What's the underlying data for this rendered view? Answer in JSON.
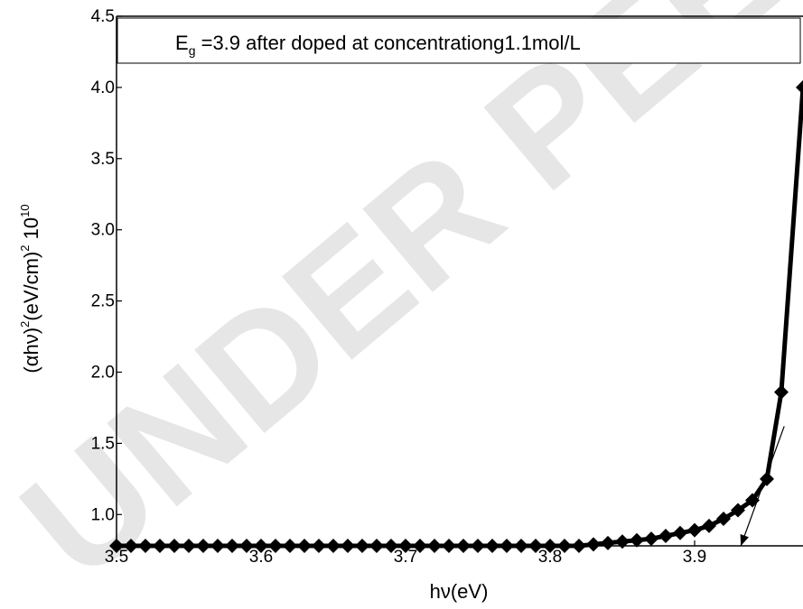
{
  "watermark": "UNDER PEER REVIEW",
  "chart_data": {
    "type": "scatter",
    "title": "",
    "legend_text_prefix": "E",
    "legend_text_sub": "g",
    "legend_text_rest": " =3.9 after doped at concentrationg1.1mol/L",
    "legend_position": "top",
    "xlabel": "hν(eV)",
    "ylabel_main": "(αhν)",
    "ylabel_sup1": "2",
    "ylabel_mid": "(eV/cm)",
    "ylabel_sup2": "2",
    "ylabel_tail": " 10",
    "ylabel_sup3": "10",
    "xlim": [
      3.5,
      3.975
    ],
    "ylim": [
      0.78,
      4.5
    ],
    "xticks": [
      3.5,
      3.6,
      3.7,
      3.8,
      3.9
    ],
    "xtick_labels": [
      "3.5",
      "3.6",
      "3.7",
      "3.8",
      "3.9"
    ],
    "yticks": [
      1.0,
      1.5,
      2.0,
      2.5,
      3.0,
      3.5,
      4.0,
      4.5
    ],
    "ytick_labels": [
      "1.0",
      "1.5",
      "2.0",
      "2.5",
      "3.0",
      "3.5",
      "4.0",
      "4.5"
    ],
    "marker": "diamond",
    "color": "#000000",
    "grid": false,
    "series": [
      {
        "x": [
          3.5,
          3.51,
          3.52,
          3.53,
          3.54,
          3.55,
          3.56,
          3.57,
          3.58,
          3.59,
          3.6,
          3.61,
          3.62,
          3.63,
          3.64,
          3.65,
          3.66,
          3.67,
          3.68,
          3.69,
          3.7,
          3.71,
          3.72,
          3.73,
          3.74,
          3.75,
          3.76,
          3.77,
          3.78,
          3.79,
          3.8,
          3.81,
          3.82,
          3.83,
          3.84,
          3.85,
          3.86,
          3.87,
          3.88,
          3.89,
          3.9,
          3.91,
          3.92,
          3.93,
          3.94,
          3.95,
          3.96,
          3.975
        ],
        "y": [
          0.78,
          0.78,
          0.78,
          0.78,
          0.78,
          0.78,
          0.78,
          0.78,
          0.78,
          0.78,
          0.78,
          0.78,
          0.78,
          0.78,
          0.78,
          0.78,
          0.78,
          0.78,
          0.78,
          0.78,
          0.78,
          0.78,
          0.78,
          0.78,
          0.78,
          0.78,
          0.78,
          0.78,
          0.78,
          0.78,
          0.78,
          0.78,
          0.78,
          0.79,
          0.8,
          0.81,
          0.82,
          0.83,
          0.85,
          0.87,
          0.89,
          0.92,
          0.97,
          1.03,
          1.1,
          1.25,
          1.86,
          4.0
        ]
      }
    ],
    "tangent_line": {
      "x": [
        3.932,
        3.962
      ],
      "y": [
        0.78,
        1.62
      ]
    },
    "arrow_tip": {
      "x": 3.932,
      "y": 0.78
    }
  }
}
